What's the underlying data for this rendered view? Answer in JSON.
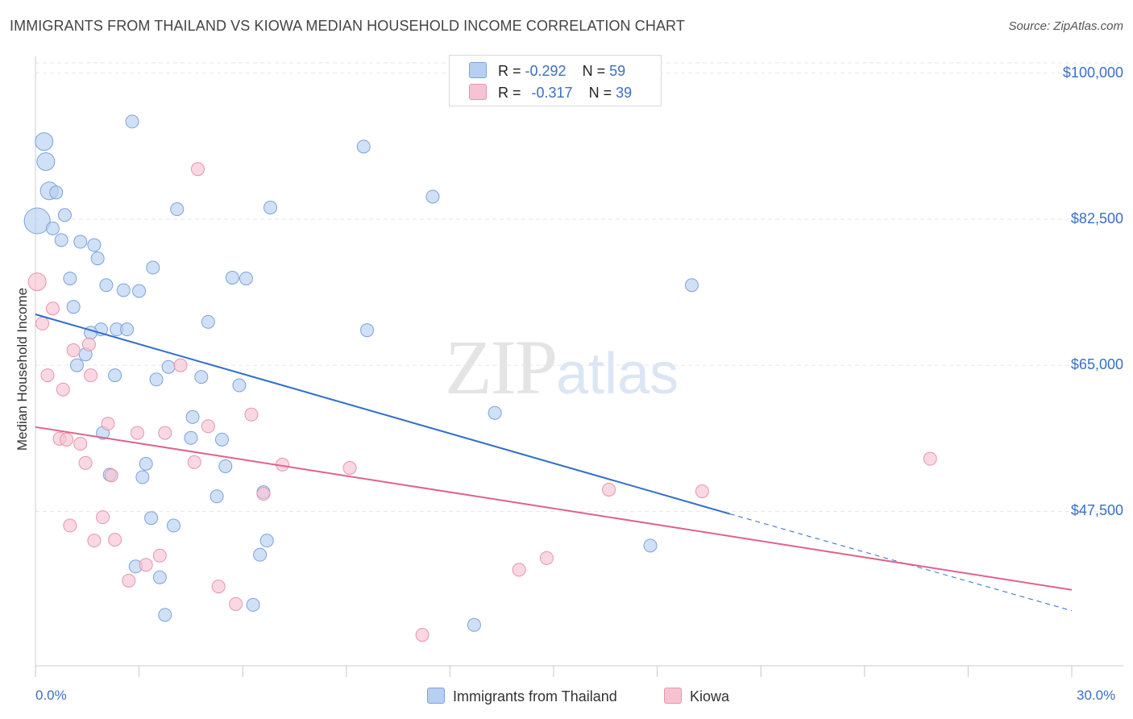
{
  "header": {
    "title": "IMMIGRANTS FROM THAILAND VS KIOWA MEDIAN HOUSEHOLD INCOME CORRELATION CHART",
    "source": "Source: ZipAtlas.com"
  },
  "watermark": {
    "zip": "ZIP",
    "atlas": "atlas"
  },
  "colors": {
    "series1_fill": "#b7d0f1",
    "series1_stroke": "#7aa3dc",
    "series1_line": "#2f6fcb",
    "series2_fill": "#f7c3d2",
    "series2_stroke": "#e993ad",
    "series2_line": "#e0628c",
    "grid": "#e6e6e6",
    "axis_text": "#3a6fc4"
  },
  "legend": {
    "rows": [
      {
        "r_label": "R = ",
        "r_value": "-0.292",
        "n_label": "N = ",
        "n_value": "59"
      },
      {
        "r_label": "R = ",
        "r_value": "-0.317",
        "n_label": "N = ",
        "n_value": "39"
      }
    ]
  },
  "chart_data": {
    "type": "scatter",
    "title": "IMMIGRANTS FROM THAILAND VS KIOWA MEDIAN HOUSEHOLD INCOME CORRELATION CHART",
    "xlabel": "",
    "ylabel": "Median Household Income",
    "xlim": [
      0,
      30
    ],
    "ylim": [
      29000,
      102000
    ],
    "x_tick_labels": [
      "0.0%",
      "30.0%"
    ],
    "y_ticks": [
      {
        "value": 100000,
        "label": "$100,000"
      },
      {
        "value": 82500,
        "label": "$82,500"
      },
      {
        "value": 65000,
        "label": "$65,000"
      },
      {
        "value": 47500,
        "label": "$47,500"
      }
    ],
    "grid": true,
    "legend_position": "top-center",
    "series": [
      {
        "name": "Immigrants from Thailand",
        "r": -0.292,
        "n": 59,
        "trend": {
          "x": [
            0,
            20.1
          ],
          "y": [
            71100,
            47200
          ],
          "dashed_to": {
            "x": 30,
            "y": 35600
          }
        },
        "points": [
          [
            0.05,
            82300,
            3
          ],
          [
            0.25,
            91800,
            2
          ],
          [
            0.3,
            89400,
            2
          ],
          [
            0.4,
            85900,
            2
          ],
          [
            0.6,
            85700,
            1
          ],
          [
            0.5,
            81400,
            1
          ],
          [
            0.85,
            83000,
            1
          ],
          [
            0.75,
            80000,
            1
          ],
          [
            1.3,
            79800,
            1
          ],
          [
            1.7,
            79400,
            1
          ],
          [
            1.8,
            77800,
            1
          ],
          [
            2.8,
            94200,
            1
          ],
          [
            4.1,
            83700,
            1
          ],
          [
            6.8,
            83900,
            1
          ],
          [
            9.5,
            91200,
            1
          ],
          [
            11.5,
            85200,
            1
          ],
          [
            1.0,
            75400,
            1
          ],
          [
            2.05,
            74600,
            1
          ],
          [
            2.55,
            74000,
            1
          ],
          [
            3.0,
            73900,
            1
          ],
          [
            3.4,
            76700,
            1
          ],
          [
            5.7,
            75500,
            1
          ],
          [
            6.1,
            75400,
            1
          ],
          [
            1.1,
            72000,
            1
          ],
          [
            1.9,
            69300,
            1
          ],
          [
            1.6,
            68900,
            1
          ],
          [
            2.35,
            69300,
            1
          ],
          [
            2.65,
            69300,
            1
          ],
          [
            5.0,
            70200,
            1
          ],
          [
            9.6,
            69200,
            1
          ],
          [
            19.0,
            74600,
            1
          ],
          [
            1.45,
            66300,
            1
          ],
          [
            1.2,
            65000,
            1
          ],
          [
            2.3,
            63800,
            1
          ],
          [
            3.5,
            63300,
            1
          ],
          [
            3.85,
            64800,
            1
          ],
          [
            4.8,
            63600,
            1
          ],
          [
            5.9,
            62600,
            1
          ],
          [
            13.3,
            59300,
            1
          ],
          [
            1.95,
            56900,
            1
          ],
          [
            4.55,
            58800,
            1
          ],
          [
            4.5,
            56300,
            1
          ],
          [
            5.4,
            56100,
            1
          ],
          [
            3.2,
            53200,
            1
          ],
          [
            5.5,
            52900,
            1
          ],
          [
            2.15,
            51900,
            1
          ],
          [
            3.1,
            51600,
            1
          ],
          [
            5.25,
            49300,
            1
          ],
          [
            6.6,
            49800,
            1
          ],
          [
            3.35,
            46700,
            1
          ],
          [
            4.0,
            45800,
            1
          ],
          [
            6.7,
            44000,
            1
          ],
          [
            6.5,
            42300,
            1
          ],
          [
            17.8,
            43400,
            1
          ],
          [
            2.9,
            40900,
            1
          ],
          [
            3.6,
            39600,
            1
          ],
          [
            6.3,
            36300,
            1
          ],
          [
            3.75,
            35100,
            1
          ],
          [
            12.7,
            33900,
            1
          ]
        ]
      },
      {
        "name": "Kiowa",
        "r": -0.317,
        "n": 39,
        "trend": {
          "x": [
            0,
            30
          ],
          "y": [
            57600,
            38100
          ]
        },
        "points": [
          [
            0.05,
            75000,
            2
          ],
          [
            0.2,
            70000,
            1
          ],
          [
            0.5,
            71800,
            1
          ],
          [
            4.7,
            88500,
            1
          ],
          [
            1.1,
            66800,
            1
          ],
          [
            1.55,
            67500,
            1
          ],
          [
            0.35,
            63800,
            1
          ],
          [
            1.6,
            63800,
            1
          ],
          [
            4.2,
            65000,
            1
          ],
          [
            0.8,
            62100,
            1
          ],
          [
            2.1,
            58000,
            1
          ],
          [
            6.25,
            59100,
            1
          ],
          [
            5.0,
            57700,
            1
          ],
          [
            2.95,
            56900,
            1
          ],
          [
            3.75,
            56900,
            1
          ],
          [
            0.7,
            56200,
            1
          ],
          [
            0.9,
            56100,
            1
          ],
          [
            1.3,
            55600,
            1
          ],
          [
            1.45,
            53300,
            1
          ],
          [
            4.6,
            53400,
            1
          ],
          [
            7.15,
            53100,
            1
          ],
          [
            9.1,
            52700,
            1
          ],
          [
            2.2,
            51800,
            1
          ],
          [
            25.9,
            53800,
            1
          ],
          [
            16.6,
            50100,
            1
          ],
          [
            19.3,
            49900,
            1
          ],
          [
            6.6,
            49600,
            1
          ],
          [
            1.95,
            46800,
            1
          ],
          [
            1.0,
            45800,
            1
          ],
          [
            1.7,
            44000,
            1
          ],
          [
            2.3,
            44100,
            1
          ],
          [
            3.6,
            42200,
            1
          ],
          [
            3.2,
            41100,
            1
          ],
          [
            14.0,
            40500,
            1
          ],
          [
            14.8,
            41900,
            1
          ],
          [
            2.7,
            39200,
            1
          ],
          [
            5.3,
            38500,
            1
          ],
          [
            5.8,
            36400,
            1
          ],
          [
            11.2,
            32700,
            1
          ]
        ]
      }
    ]
  }
}
